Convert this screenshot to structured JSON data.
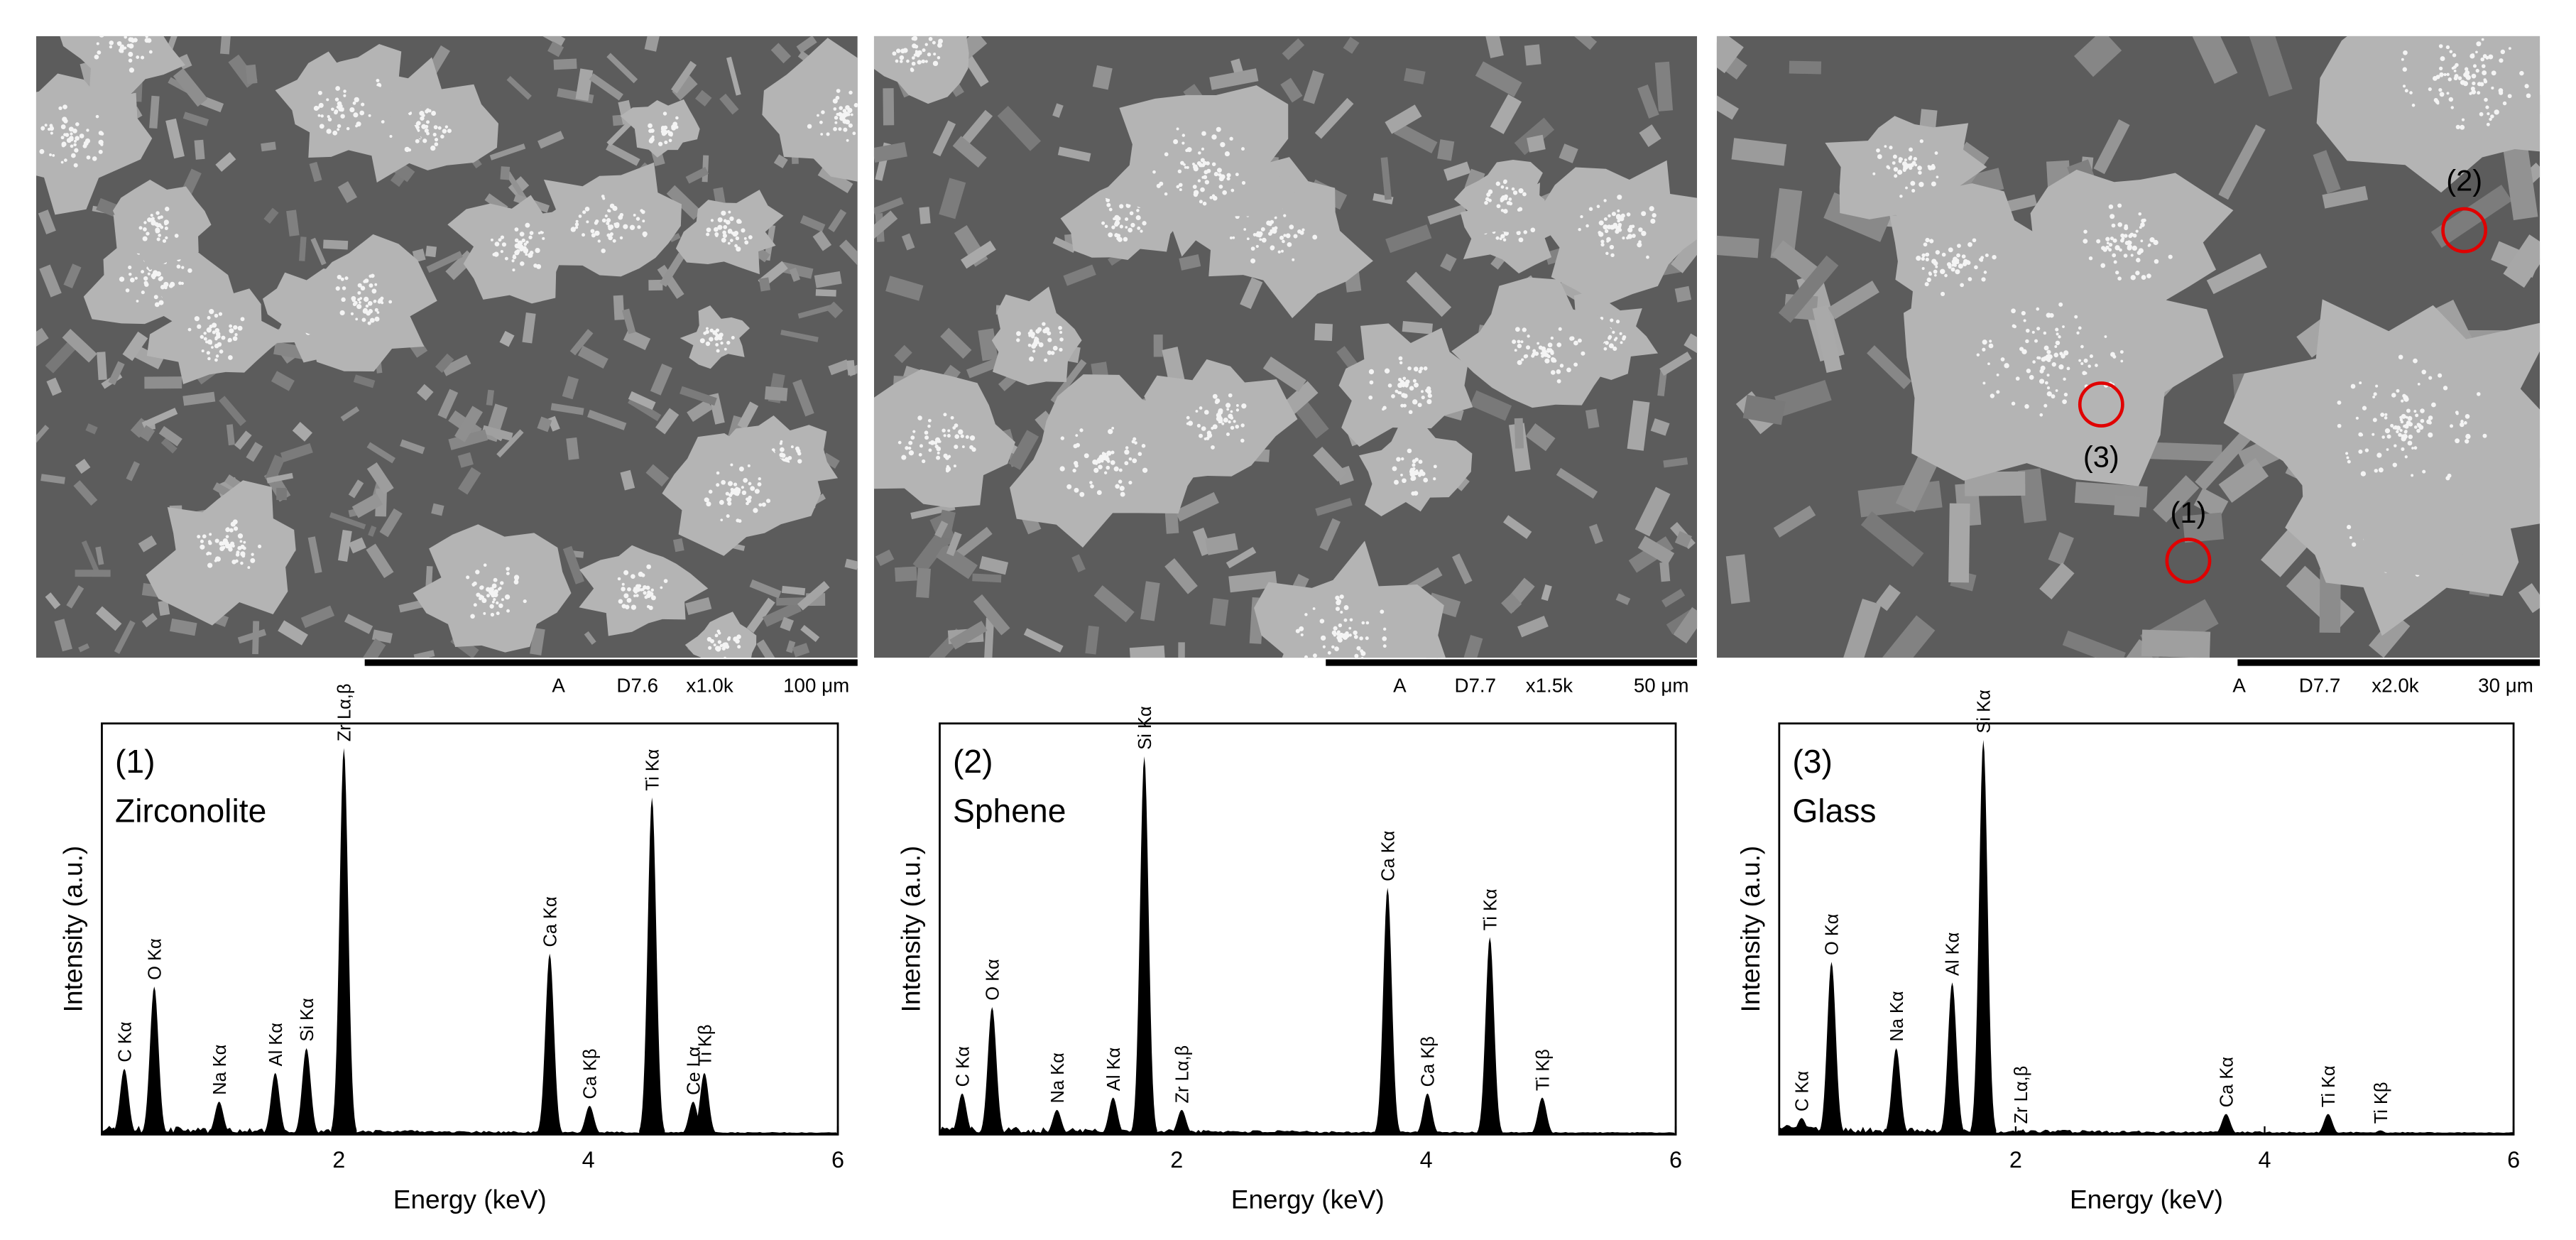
{
  "micrographs": [
    {
      "detector": "A",
      "working_distance": "D7.6",
      "magnification": "x1.0k",
      "scale": "100 μm"
    },
    {
      "detector": "A",
      "working_distance": "D7.7",
      "magnification": "x1.5k",
      "scale": "50 μm"
    },
    {
      "detector": "A",
      "working_distance": "D7.7",
      "magnification": "x2.0k",
      "scale": "30 μm",
      "markers": [
        "(1)",
        "(2)",
        "(3)"
      ]
    }
  ],
  "chart_data": [
    {
      "type": "spectrum",
      "panel_label": "(1)",
      "annotation": "Zirconolite",
      "x_label": "Energy (keV)",
      "y_label": "Intensity (a.u.)",
      "x": [
        0.28,
        0.52,
        1.04,
        1.49,
        1.74,
        2.04,
        3.69,
        4.01,
        4.51,
        4.84,
        4.93
      ],
      "values": [
        16,
        36,
        8,
        15,
        21,
        94,
        44,
        7,
        82,
        8,
        15
      ],
      "peak_labels": [
        "C Kα",
        "O Kα",
        "Na Kα",
        "Al Kα",
        "Si Kα",
        "Zr Lα,β",
        "Ca Kα",
        "Ca Kβ",
        "Ti Kα",
        "Ce Lα",
        "Ti Kβ"
      ],
      "xlim": [
        0.1,
        6
      ],
      "xticks": [
        2,
        4,
        6
      ],
      "ylim": [
        0,
        100
      ],
      "color": "#000000"
    },
    {
      "type": "spectrum",
      "panel_label": "(2)",
      "annotation": "Sphene",
      "x_label": "Energy (keV)",
      "y_label": "Intensity (a.u.)",
      "x": [
        0.28,
        0.52,
        1.04,
        1.49,
        1.74,
        2.04,
        3.69,
        4.01,
        4.51,
        4.93
      ],
      "values": [
        10,
        31,
        6,
        9,
        92,
        6,
        60,
        10,
        48,
        9
      ],
      "peak_labels": [
        "C Kα",
        "O Kα",
        "Na Kα",
        "Al Kα",
        "Si Kα",
        "Zr Lα,β",
        "Ca Kα",
        "Ca Kβ",
        "Ti Kα",
        "Ti Kβ"
      ],
      "xlim": [
        0.1,
        6
      ],
      "xticks": [
        2,
        4,
        6
      ],
      "ylim": [
        0,
        100
      ],
      "color": "#000000"
    },
    {
      "type": "spectrum",
      "panel_label": "(3)",
      "annotation": "Glass",
      "x_label": "Energy (keV)",
      "y_label": "Intensity (a.u.)",
      "x": [
        0.28,
        0.52,
        1.04,
        1.49,
        1.74,
        2.04,
        3.69,
        4.51,
        4.93
      ],
      "values": [
        4,
        42,
        21,
        37,
        96,
        1,
        5,
        5,
        1
      ],
      "peak_labels": [
        "C Kα",
        "O Kα",
        "Na Kα",
        "Al Kα",
        "Si Kα",
        "Zr Lα,β",
        "Ca Kα",
        "Ti Kα",
        "Ti Kβ"
      ],
      "xlim": [
        0.1,
        6
      ],
      "xticks": [
        2,
        4,
        6
      ],
      "ylim": [
        0,
        100
      ],
      "color": "#000000"
    }
  ]
}
